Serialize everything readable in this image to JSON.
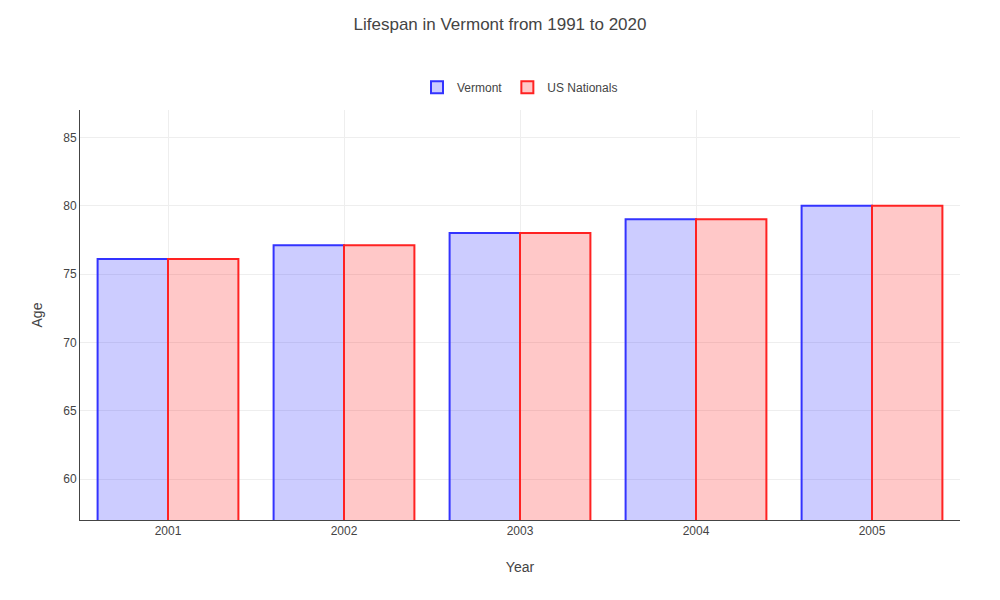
{
  "chart_data": {
    "type": "bar",
    "title": "Lifespan in Vermont from 1991 to 2020",
    "xlabel": "Year",
    "ylabel": "Age",
    "categories": [
      "2001",
      "2002",
      "2003",
      "2004",
      "2005"
    ],
    "series": [
      {
        "name": "Vermont",
        "color": "#3333ff",
        "values": [
          76.1,
          77.1,
          78.0,
          79.0,
          80.0
        ]
      },
      {
        "name": "US Nationals",
        "color": "#ff2222",
        "values": [
          76.1,
          77.1,
          78.0,
          79.0,
          80.0
        ]
      }
    ],
    "ylim": [
      57,
      87
    ],
    "yticks": [
      60,
      65,
      70,
      75,
      80,
      85
    ],
    "grid": true,
    "legend": "top"
  }
}
